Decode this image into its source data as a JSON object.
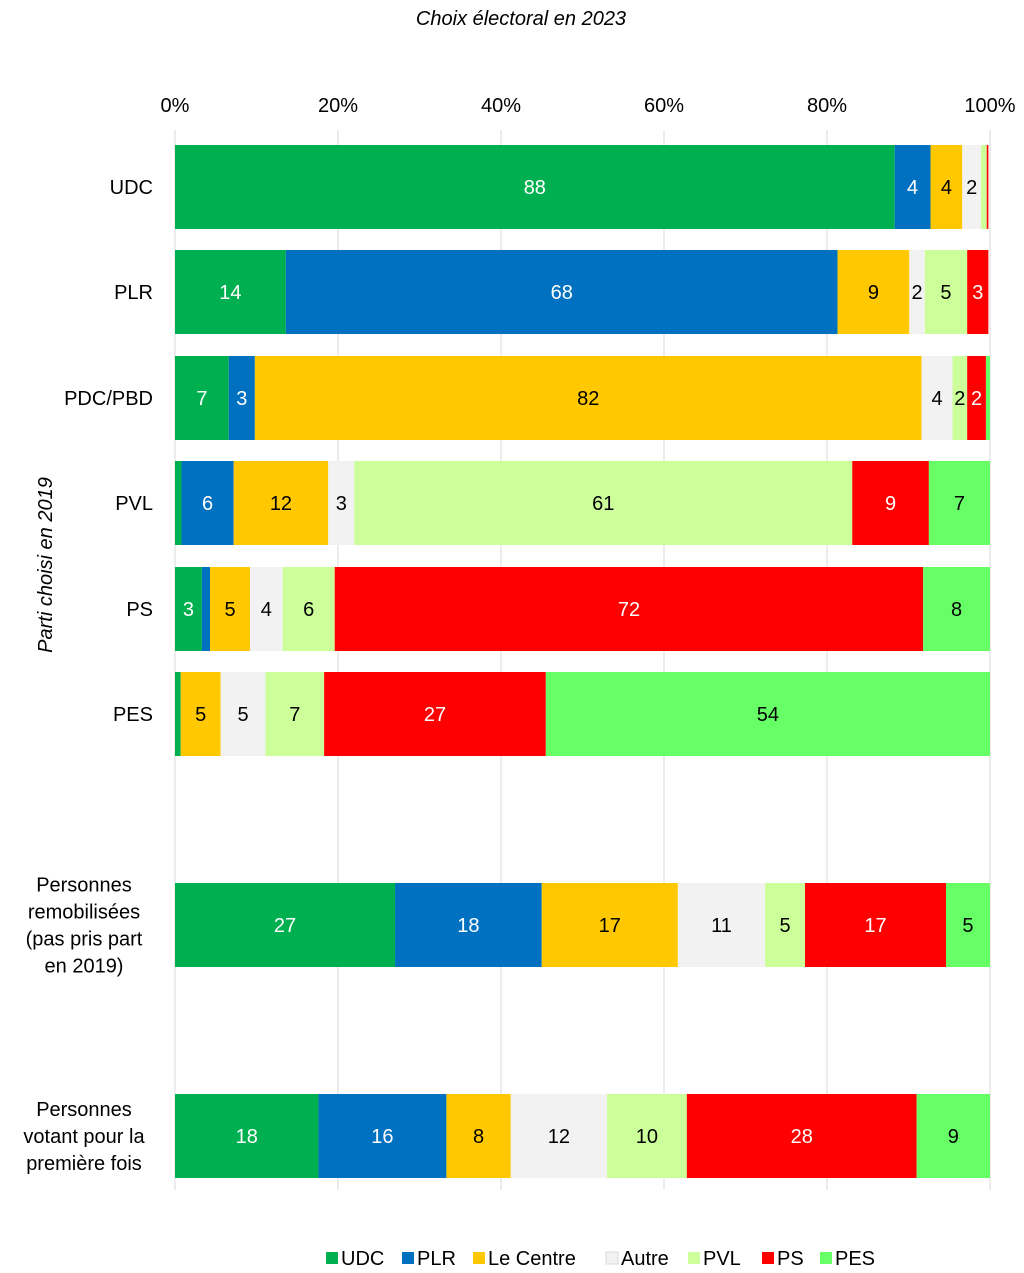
{
  "chart_data": {
    "type": "bar",
    "orientation": "horizontal",
    "stacked": true,
    "title": "Choix électoral en 2023",
    "ylabel": "Parti choisi en 2019",
    "xlabel": "",
    "xlim": [
      0,
      100
    ],
    "x_ticks": [
      "0%",
      "20%",
      "40%",
      "60%",
      "80%",
      "100%"
    ],
    "x_tick_values": [
      0,
      20,
      40,
      60,
      80,
      100
    ],
    "grid": true,
    "legend_position": "bottom",
    "categories": [
      "UDC",
      "PLR",
      "PDC/PBD",
      "PVL",
      "PS",
      "PES",
      "Personnes remobilisées (pas pris part en 2019)",
      "Personnes votant pour la première fois"
    ],
    "category_lines": [
      [
        "UDC"
      ],
      [
        "PLR"
      ],
      [
        "PDC/PBD"
      ],
      [
        "PVL"
      ],
      [
        "PS"
      ],
      [
        "PES"
      ],
      [
        "Personnes",
        "remobilisées",
        "(pas pris part",
        "en 2019)"
      ],
      [
        "Personnes",
        "votant pour la",
        "première fois"
      ]
    ],
    "series": [
      {
        "name": "UDC",
        "color": "#00B050",
        "label_color": "#ffffff",
        "values": [
          88.3,
          13.6,
          6.6,
          0.8,
          3.3,
          0.7,
          27,
          17.6
        ]
      },
      {
        "name": "PLR",
        "color": "#0070C0",
        "label_color": "#ffffff",
        "values": [
          4.4,
          67.7,
          3.2,
          6.4,
          1.0,
          0.0,
          18,
          15.7
        ]
      },
      {
        "name": "Le Centre",
        "color": "#FFC800",
        "label_color": "#000000",
        "values": [
          3.9,
          8.8,
          81.8,
          11.6,
          4.9,
          4.9,
          16.7,
          7.9
        ]
      },
      {
        "name": "Autre",
        "color": "#F2F2F2",
        "label_color": "#000000",
        "values": [
          2.3,
          1.9,
          3.8,
          3.2,
          4.0,
          5.5,
          10.7,
          11.8
        ]
      },
      {
        "name": "PVL",
        "color": "#CCFF99",
        "label_color": "#000000",
        "values": [
          0.7,
          5.2,
          1.8,
          61.1,
          6.4,
          7.2,
          4.9,
          9.8
        ]
      },
      {
        "name": "PS",
        "color": "#FF0000",
        "label_color": "#ffffff",
        "values": [
          0.2,
          2.6,
          2.3,
          9.4,
          72.2,
          27.2,
          17.3,
          28.2
        ]
      },
      {
        "name": "PES",
        "color": "#66FF66",
        "label_color": "#000000",
        "values": [
          0.0,
          0.0,
          0.5,
          7.5,
          8.2,
          54.5,
          5.4,
          9.0
        ]
      }
    ],
    "data_labels": [
      [
        "88",
        "4",
        "4",
        "2",
        "",
        "",
        ""
      ],
      [
        "14",
        "68",
        "9",
        "2",
        "5",
        "3",
        ""
      ],
      [
        "7",
        "3",
        "82",
        "4",
        "2",
        "2",
        ""
      ],
      [
        "",
        "6",
        "12",
        "3",
        "61",
        "9",
        "7"
      ],
      [
        "3",
        "",
        "5",
        "4",
        "6",
        "72",
        "8"
      ],
      [
        "",
        "",
        "5",
        "5",
        "7",
        "27",
        "54"
      ],
      [
        "27",
        "18",
        "17",
        "11",
        "5",
        "17",
        "5"
      ],
      [
        "18",
        "16",
        "8",
        "12",
        "10",
        "28",
        "9"
      ]
    ]
  }
}
